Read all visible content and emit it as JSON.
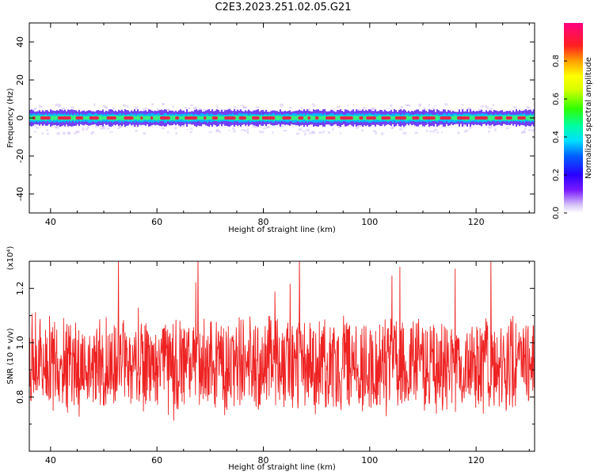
{
  "figure_title": "C2E3.2023.251.02.05.G21",
  "colors": {
    "snr_line": "#ee2222",
    "spectrogram_core": "#e6264a"
  },
  "chart_data": [
    {
      "type": "heatmap",
      "name": "spectrogram",
      "xlabel": "Height of straight line (km)",
      "ylabel": "Frequency (Hz)",
      "xlim": [
        36,
        131
      ],
      "ylim": [
        -50,
        50
      ],
      "xticks": [
        40,
        60,
        80,
        100,
        120
      ],
      "yticks": [
        -40,
        -20,
        0,
        20,
        40
      ],
      "xtick_labels": [
        "40",
        "60",
        "80",
        "100",
        "120"
      ],
      "ytick_labels": [
        "-40",
        "-20",
        "0",
        "20",
        "40"
      ],
      "colorbar": {
        "label": "Normalized spectral amplitude",
        "range": [
          0.0,
          1.0
        ],
        "ticks": [
          0.0,
          0.2,
          0.4,
          0.6,
          0.8
        ],
        "tick_labels": [
          "0.0",
          "0.2",
          "0.4",
          "0.6",
          "0.8"
        ]
      },
      "band_center_hz": 0,
      "band_halfwidth_hz": 3,
      "grid": false
    },
    {
      "type": "line",
      "name": "snr",
      "xlabel": "Height of straight line (km)",
      "ylabel": "SNR (10 * v/v)",
      "y_scale_note": "(x10⁴)",
      "xlim": [
        36,
        131
      ],
      "ylim": [
        0.6,
        1.3
      ],
      "xticks": [
        40,
        60,
        80,
        100,
        120
      ],
      "yticks": [
        0.8,
        1.0,
        1.2
      ],
      "xtick_labels": [
        "40",
        "60",
        "80",
        "100",
        "120"
      ],
      "ytick_labels": [
        "0.8",
        "1.0",
        "1.2"
      ],
      "mean": 0.92,
      "typical_min": 0.75,
      "typical_max": 1.1,
      "extreme_max": 1.3,
      "extreme_min": 0.6,
      "grid": false
    }
  ]
}
